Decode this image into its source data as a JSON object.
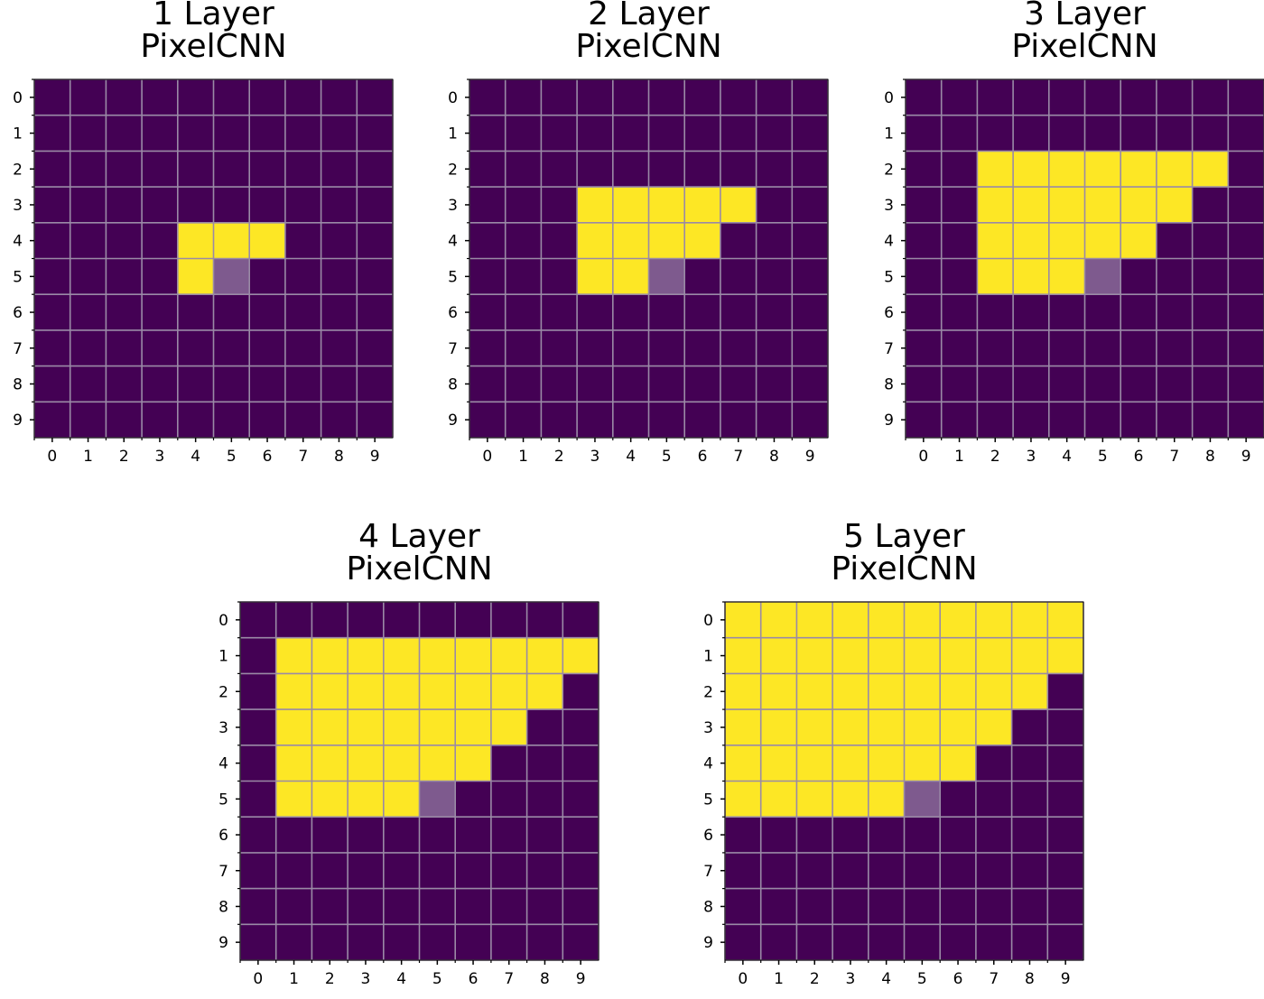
{
  "colors": {
    "background": "#440154",
    "receptive": "#fde725",
    "current": "#7e5a8e",
    "grid": "#9a8aa6",
    "tick": "#000000"
  },
  "chart_data": [
    {
      "type": "heatmap",
      "title": [
        "1 Layer",
        "PixelCNN"
      ],
      "x_ticks": [
        "0",
        "1",
        "2",
        "3",
        "4",
        "5",
        "6",
        "7",
        "8",
        "9"
      ],
      "y_ticks": [
        "0",
        "1",
        "2",
        "3",
        "4",
        "5",
        "6",
        "7",
        "8",
        "9"
      ],
      "xlim": [
        -0.5,
        9.5
      ],
      "ylim": [
        -0.5,
        9.5
      ],
      "current_pixel": {
        "row": 5,
        "col": 5
      },
      "receptive_field": [
        {
          "row": 4,
          "cols": [
            4,
            5,
            6
          ]
        },
        {
          "row": 5,
          "cols": [
            4
          ]
        }
      ],
      "grid": true
    },
    {
      "type": "heatmap",
      "title": [
        "2 Layer",
        "PixelCNN"
      ],
      "x_ticks": [
        "0",
        "1",
        "2",
        "3",
        "4",
        "5",
        "6",
        "7",
        "8",
        "9"
      ],
      "y_ticks": [
        "0",
        "1",
        "2",
        "3",
        "4",
        "5",
        "6",
        "7",
        "8",
        "9"
      ],
      "xlim": [
        -0.5,
        9.5
      ],
      "ylim": [
        -0.5,
        9.5
      ],
      "current_pixel": {
        "row": 5,
        "col": 5
      },
      "receptive_field": [
        {
          "row": 3,
          "cols": [
            3,
            4,
            5,
            6,
            7
          ]
        },
        {
          "row": 4,
          "cols": [
            3,
            4,
            5,
            6
          ]
        },
        {
          "row": 5,
          "cols": [
            3,
            4
          ]
        }
      ],
      "grid": true
    },
    {
      "type": "heatmap",
      "title": [
        "3 Layer",
        "PixelCNN"
      ],
      "x_ticks": [
        "0",
        "1",
        "2",
        "3",
        "4",
        "5",
        "6",
        "7",
        "8",
        "9"
      ],
      "y_ticks": [
        "0",
        "1",
        "2",
        "3",
        "4",
        "5",
        "6",
        "7",
        "8",
        "9"
      ],
      "xlim": [
        -0.5,
        9.5
      ],
      "ylim": [
        -0.5,
        9.5
      ],
      "current_pixel": {
        "row": 5,
        "col": 5
      },
      "receptive_field": [
        {
          "row": 2,
          "cols": [
            2,
            3,
            4,
            5,
            6,
            7,
            8
          ]
        },
        {
          "row": 3,
          "cols": [
            2,
            3,
            4,
            5,
            6,
            7
          ]
        },
        {
          "row": 4,
          "cols": [
            2,
            3,
            4,
            5,
            6
          ]
        },
        {
          "row": 5,
          "cols": [
            2,
            3,
            4
          ]
        }
      ],
      "grid": true
    },
    {
      "type": "heatmap",
      "title": [
        "4 Layer",
        "PixelCNN"
      ],
      "x_ticks": [
        "0",
        "1",
        "2",
        "3",
        "4",
        "5",
        "6",
        "7",
        "8",
        "9"
      ],
      "y_ticks": [
        "0",
        "1",
        "2",
        "3",
        "4",
        "5",
        "6",
        "7",
        "8",
        "9"
      ],
      "xlim": [
        -0.5,
        9.5
      ],
      "ylim": [
        -0.5,
        9.5
      ],
      "current_pixel": {
        "row": 5,
        "col": 5
      },
      "receptive_field": [
        {
          "row": 1,
          "cols": [
            1,
            2,
            3,
            4,
            5,
            6,
            7,
            8,
            9
          ]
        },
        {
          "row": 2,
          "cols": [
            1,
            2,
            3,
            4,
            5,
            6,
            7,
            8
          ]
        },
        {
          "row": 3,
          "cols": [
            1,
            2,
            3,
            4,
            5,
            6,
            7
          ]
        },
        {
          "row": 4,
          "cols": [
            1,
            2,
            3,
            4,
            5,
            6
          ]
        },
        {
          "row": 5,
          "cols": [
            1,
            2,
            3,
            4
          ]
        }
      ],
      "grid": true
    },
    {
      "type": "heatmap",
      "title": [
        "5 Layer",
        "PixelCNN"
      ],
      "x_ticks": [
        "0",
        "1",
        "2",
        "3",
        "4",
        "5",
        "6",
        "7",
        "8",
        "9"
      ],
      "y_ticks": [
        "0",
        "1",
        "2",
        "3",
        "4",
        "5",
        "6",
        "7",
        "8",
        "9"
      ],
      "xlim": [
        -0.5,
        9.5
      ],
      "ylim": [
        -0.5,
        9.5
      ],
      "current_pixel": {
        "row": 5,
        "col": 5
      },
      "receptive_field": [
        {
          "row": 0,
          "cols": [
            0,
            1,
            2,
            3,
            4,
            5,
            6,
            7,
            8,
            9
          ]
        },
        {
          "row": 1,
          "cols": [
            0,
            1,
            2,
            3,
            4,
            5,
            6,
            7,
            8,
            9
          ]
        },
        {
          "row": 2,
          "cols": [
            0,
            1,
            2,
            3,
            4,
            5,
            6,
            7,
            8
          ]
        },
        {
          "row": 3,
          "cols": [
            0,
            1,
            2,
            3,
            4,
            5,
            6,
            7
          ]
        },
        {
          "row": 4,
          "cols": [
            0,
            1,
            2,
            3,
            4,
            5,
            6
          ]
        },
        {
          "row": 5,
          "cols": [
            0,
            1,
            2,
            3,
            4
          ]
        }
      ],
      "grid": true
    }
  ]
}
